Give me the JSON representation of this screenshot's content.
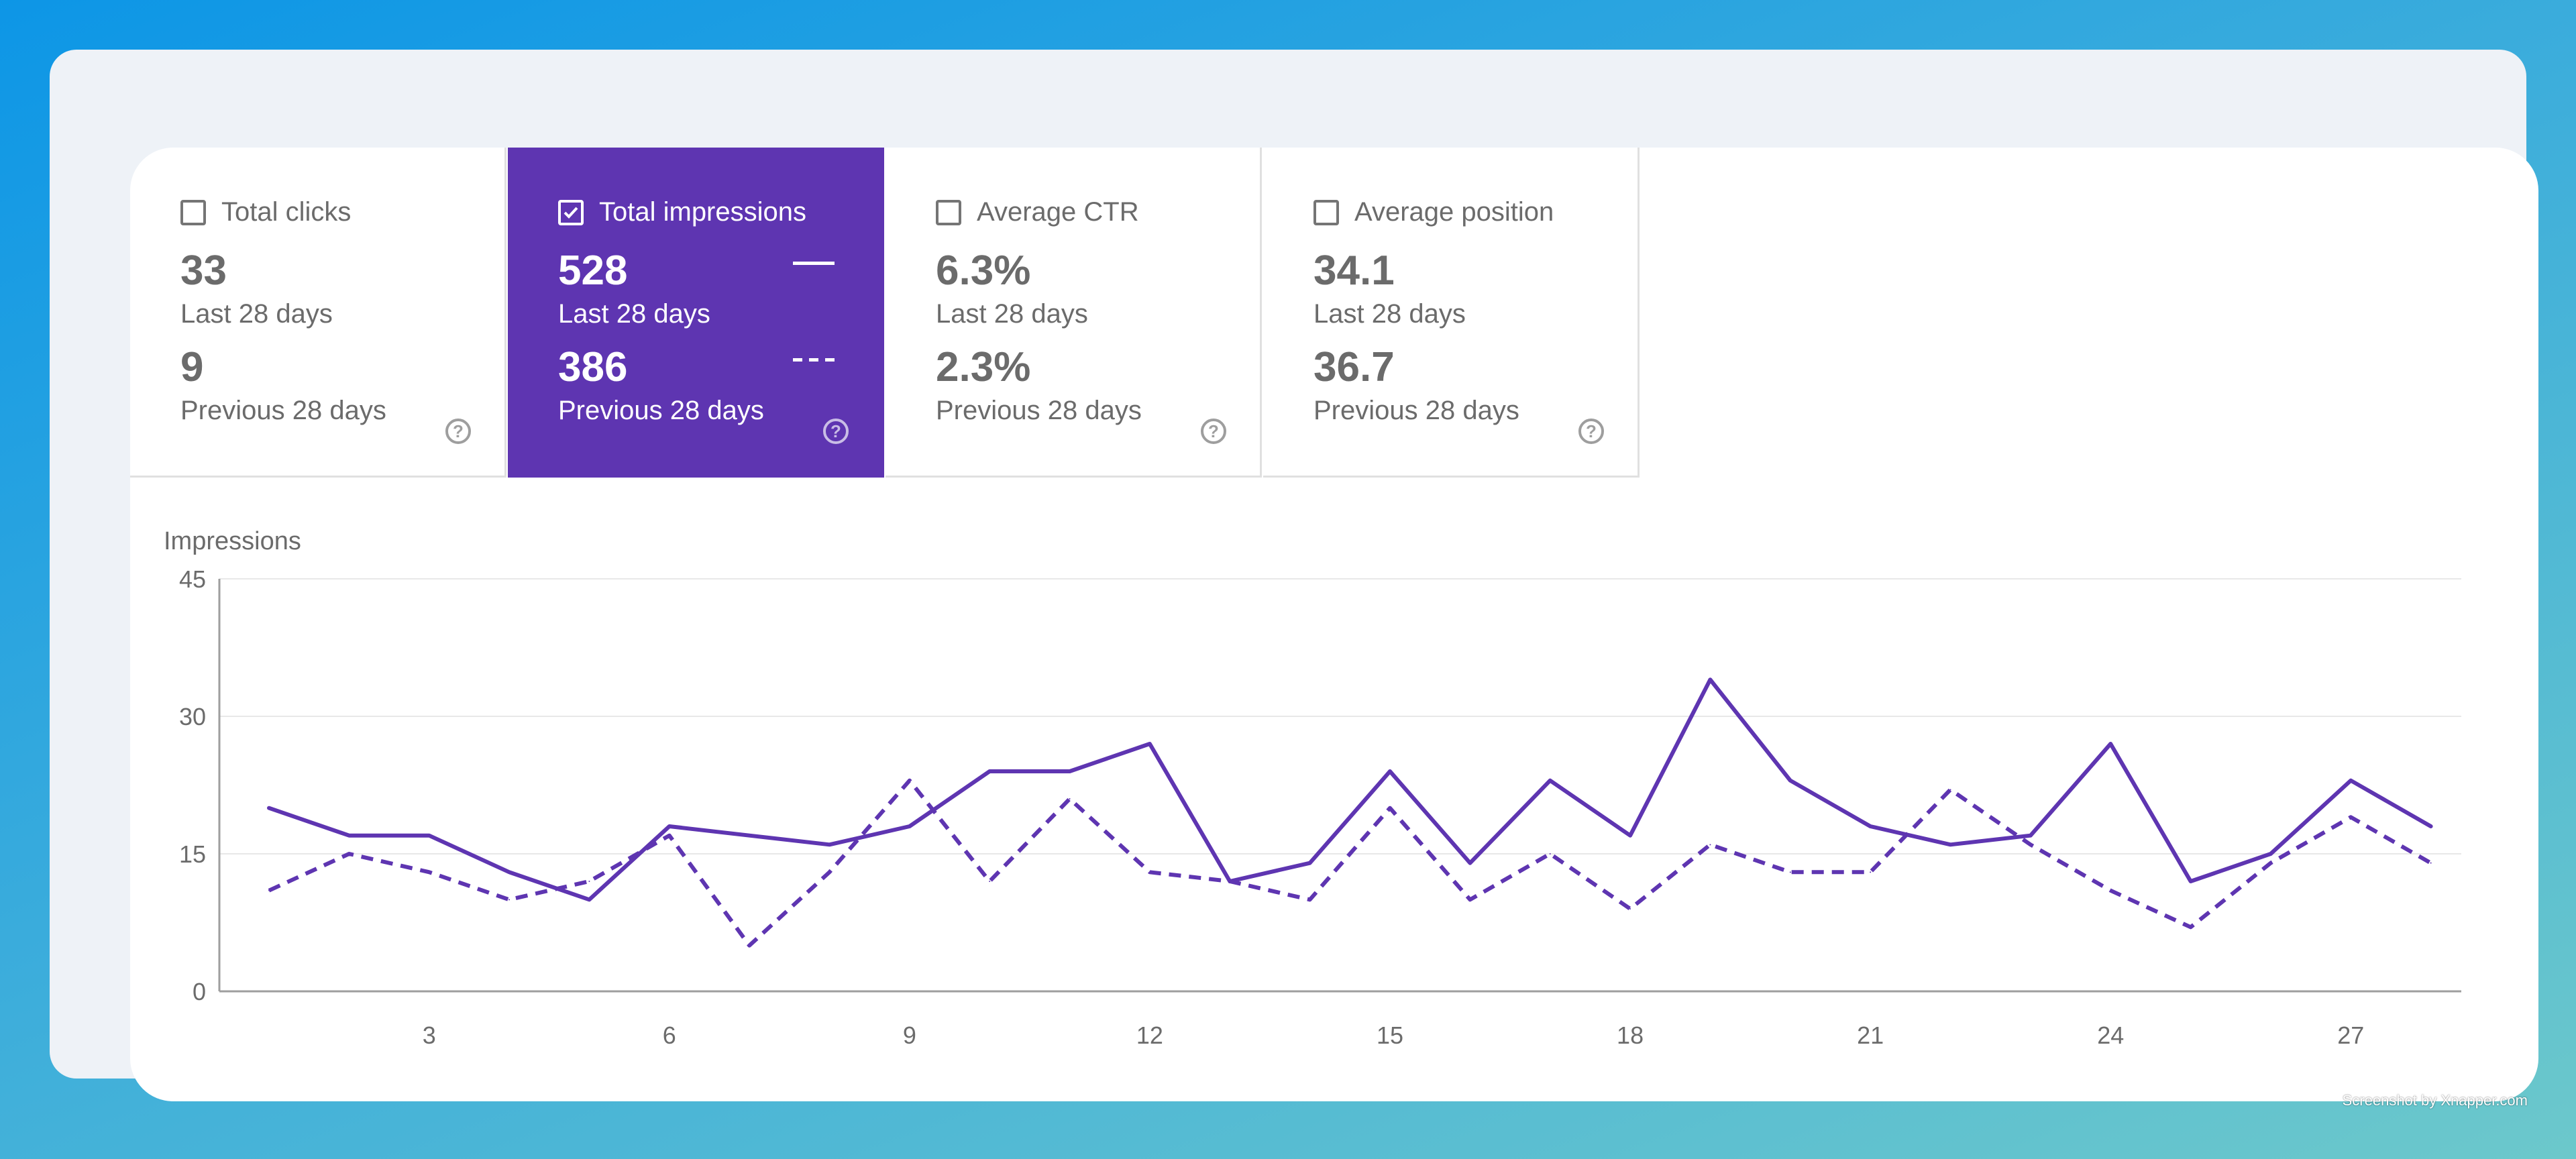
{
  "tiles": [
    {
      "label": "Total clicks",
      "value1": "33",
      "period1": "Last 28 days",
      "value2": "9",
      "period2": "Previous 28 days",
      "checked": false
    },
    {
      "label": "Total impressions",
      "value1": "528",
      "period1": "Last 28 days",
      "value2": "386",
      "period2": "Previous 28 days",
      "checked": true
    },
    {
      "label": "Average CTR",
      "value1": "6.3%",
      "period1": "Last 28 days",
      "value2": "2.3%",
      "period2": "Previous 28 days",
      "checked": false
    },
    {
      "label": "Average position",
      "value1": "34.1",
      "period1": "Last 28 days",
      "value2": "36.7",
      "period2": "Previous 28 days",
      "checked": false
    }
  ],
  "help_glyph": "?",
  "colors": {
    "accent": "#5e35b1",
    "axis": "#9e9e9e",
    "grid": "#e8e8e8",
    "text": "#6b6b6b"
  },
  "chart_data": {
    "type": "line",
    "ylabel": "Impressions",
    "ylim": [
      0,
      45
    ],
    "yticks": [
      0,
      15,
      30,
      45
    ],
    "xlim": [
      1,
      28
    ],
    "xticks": [
      3,
      6,
      9,
      12,
      15,
      18,
      21,
      24,
      27
    ],
    "grid": true,
    "x": [
      1,
      2,
      3,
      4,
      5,
      6,
      7,
      8,
      9,
      10,
      11,
      12,
      13,
      14,
      15,
      16,
      17,
      18,
      19,
      20,
      21,
      22,
      23,
      24,
      25,
      26,
      27,
      28
    ],
    "series": [
      {
        "style": "solid",
        "values": [
          20,
          17,
          17,
          13,
          10,
          18,
          17,
          16,
          18,
          24,
          24,
          27,
          12,
          14,
          24,
          14,
          23,
          17,
          34,
          23,
          18,
          16,
          17,
          27,
          12,
          15,
          23,
          18
        ]
      },
      {
        "style": "dashed",
        "values": [
          11,
          15,
          13,
          10,
          12,
          17,
          5,
          13,
          23,
          12,
          21,
          13,
          12,
          10,
          20,
          10,
          15,
          9,
          16,
          13,
          13,
          22,
          16,
          11,
          7,
          14,
          19,
          14
        ]
      }
    ]
  },
  "watermark": "Screenshot by Xnapper.com"
}
